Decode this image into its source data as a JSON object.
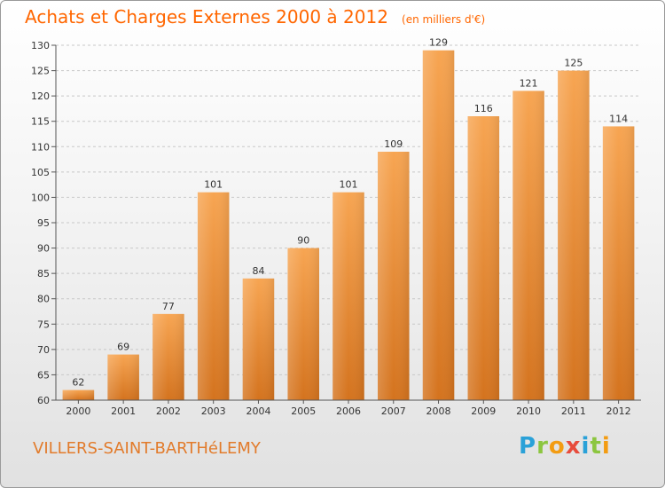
{
  "chart_data": {
    "type": "bar",
    "title": "Achats et Charges Externes 2000 à 2012",
    "subtitle": "(en milliers d'€)",
    "categories": [
      "2000",
      "2001",
      "2002",
      "2003",
      "2004",
      "2005",
      "2006",
      "2007",
      "2008",
      "2009",
      "2010",
      "2011",
      "2012"
    ],
    "values": [
      62,
      69,
      77,
      101,
      84,
      90,
      101,
      109,
      129,
      116,
      121,
      125,
      114
    ],
    "ylim": [
      60,
      130
    ],
    "yticks": [
      60,
      65,
      70,
      75,
      80,
      85,
      90,
      95,
      100,
      105,
      110,
      115,
      120,
      125,
      130
    ],
    "xlabel": "",
    "ylabel": "",
    "grid": true,
    "bar_color_top": "#f7a552",
    "bar_color_bottom": "#d4731e"
  },
  "footer": {
    "town": "VILLERS-SAINT-BARTHéLEMY",
    "brand_letters": [
      {
        "ch": "P",
        "color": "#2aa1d8"
      },
      {
        "ch": "r",
        "color": "#8cc63f"
      },
      {
        "ch": "o",
        "color": "#f39c12"
      },
      {
        "ch": "x",
        "color": "#e74c3c"
      },
      {
        "ch": "i",
        "color": "#2aa1d8"
      },
      {
        "ch": "t",
        "color": "#8cc63f"
      },
      {
        "ch": "i",
        "color": "#f39c12"
      }
    ]
  }
}
